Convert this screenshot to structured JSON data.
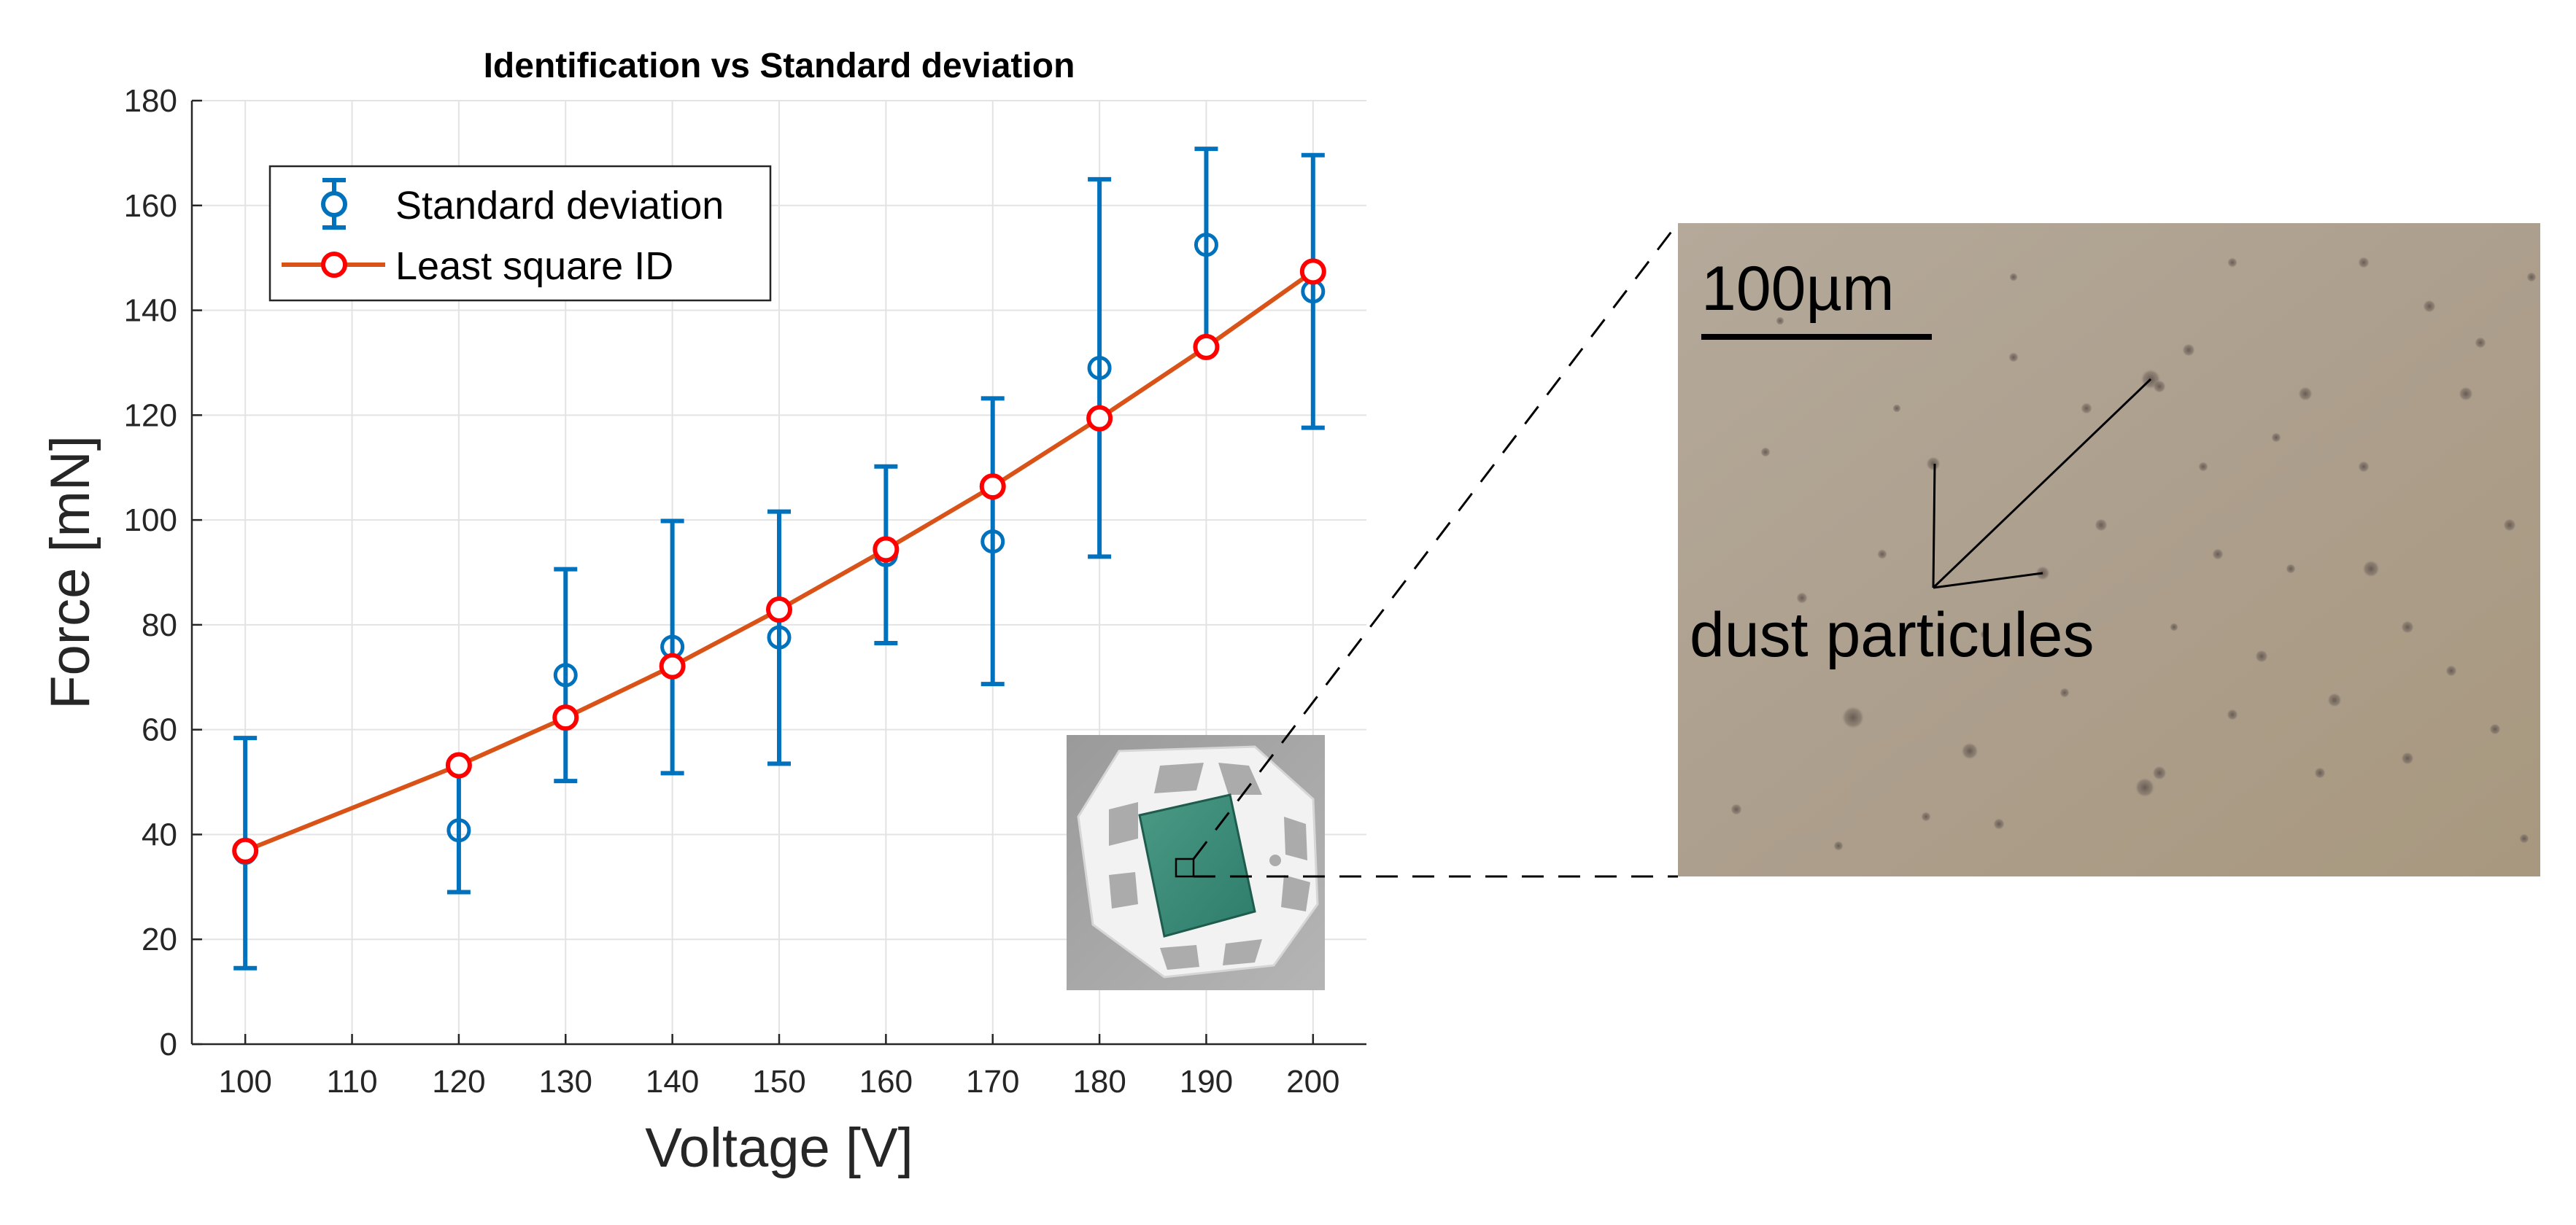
{
  "chart_data": {
    "type": "line",
    "title": "Identification vs Standard deviation",
    "xlabel": "Voltage [V]",
    "ylabel": "Force [mN]",
    "xlim": [
      95,
      205
    ],
    "ylim": [
      0,
      180
    ],
    "xticks": [
      100,
      110,
      120,
      130,
      140,
      150,
      160,
      170,
      180,
      190,
      200
    ],
    "yticks": [
      0,
      20,
      40,
      60,
      80,
      100,
      120,
      140,
      160,
      180
    ],
    "grid": true,
    "legend_position": "top-left",
    "series": [
      {
        "name": "Standard deviation",
        "kind": "errorbar",
        "color": "#0072BD",
        "x": [
          100,
          120,
          130,
          140,
          150,
          160,
          170,
          180,
          190,
          200
        ],
        "y": [
          36.5,
          40.8,
          70.4,
          75.8,
          77.6,
          93.3,
          95.9,
          129.0,
          152.5,
          143.6
        ],
        "lower": [
          14.5,
          29.0,
          50.2,
          51.7,
          53.5,
          76.5,
          68.7,
          93.0,
          133.8,
          117.6
        ],
        "upper": [
          58.4,
          52.6,
          90.6,
          99.8,
          101.6,
          110.2,
          123.2,
          165.0,
          170.8,
          169.6
        ]
      },
      {
        "name": "Least square ID",
        "kind": "line",
        "color": "#D95319",
        "marker_color": "#FF0000",
        "x": [
          100,
          120,
          130,
          140,
          150,
          160,
          170,
          180,
          190,
          200
        ],
        "y": [
          36.9,
          53.2,
          62.3,
          72.1,
          82.9,
          94.4,
          106.4,
          119.4,
          133.0,
          147.4
        ]
      }
    ]
  },
  "annotations": {
    "scale_bar_label": "100µm",
    "particles_label": "dust particules"
  },
  "insets": {
    "device_photo": "photo of white 3D-printed polyhedral cage with green square sample",
    "micrograph": "optical micrograph of sample surface with dust particles"
  }
}
